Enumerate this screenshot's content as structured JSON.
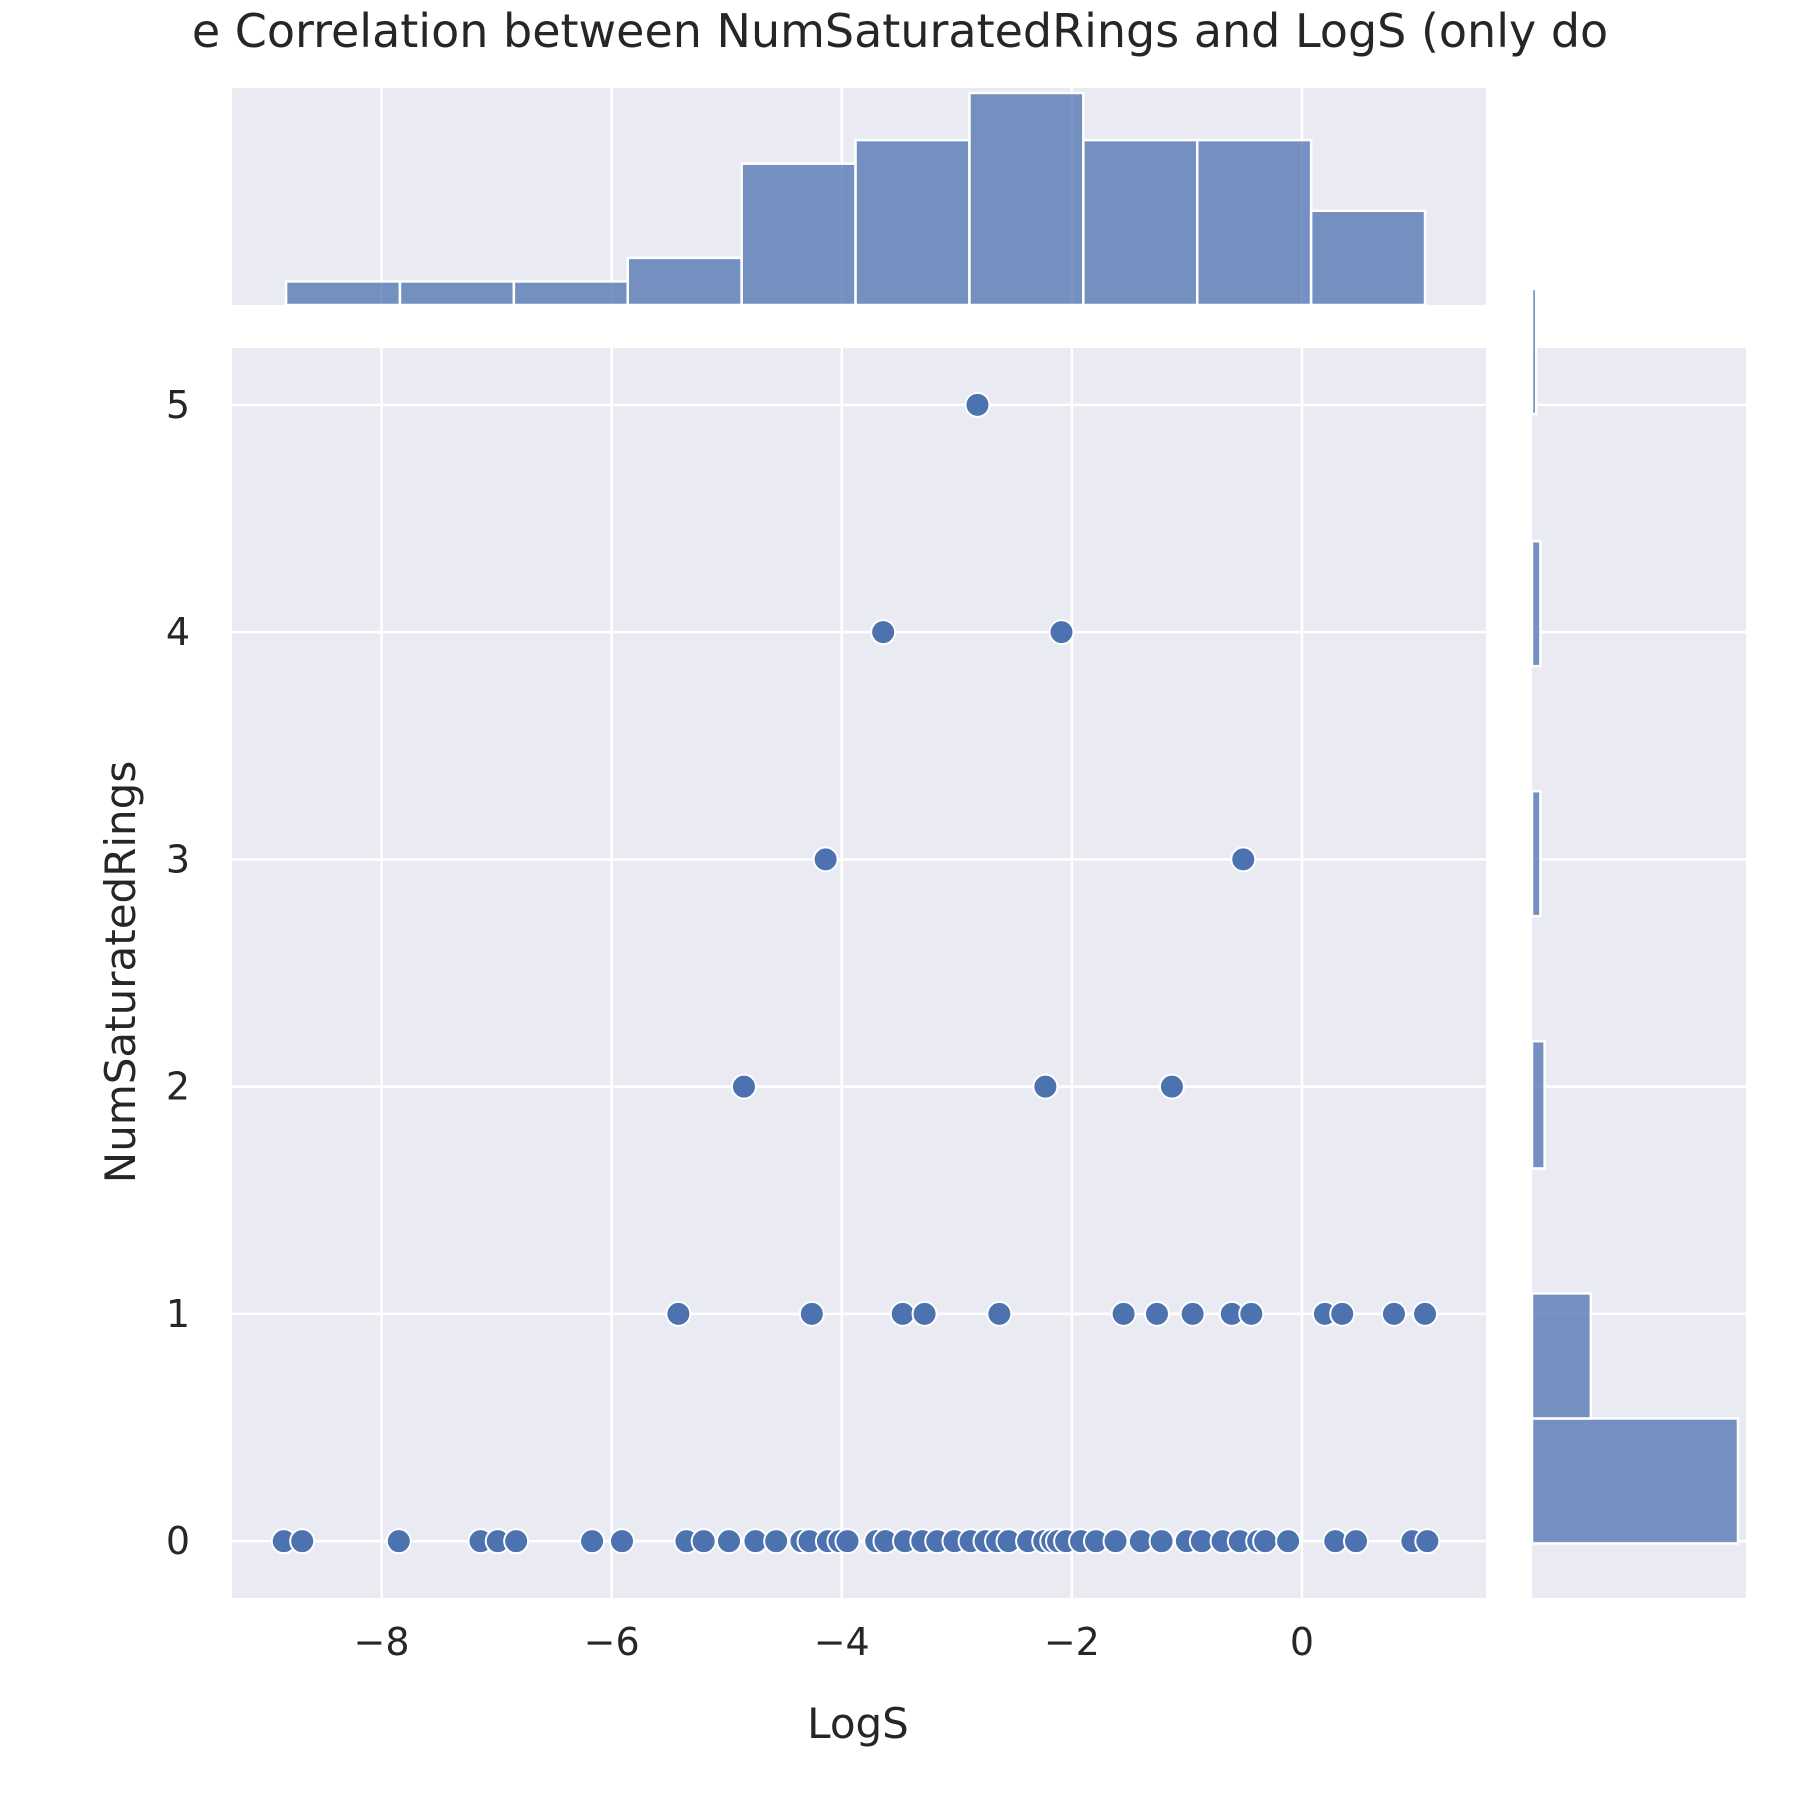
{
  "chart_data": {
    "type": "scatter",
    "title": "e Correlation between NumSaturatedRings and LogS (only do",
    "xlabel": "LogS",
    "ylabel": "NumSaturatedRings",
    "xlim": [
      -9.3,
      1.6
    ],
    "ylim": [
      -0.25,
      5.25
    ],
    "x_ticks": [
      -8,
      -6,
      -4,
      -2,
      0
    ],
    "x_tick_labels": [
      "−8",
      "−6",
      "−4",
      "−2",
      "0"
    ],
    "y_ticks": [
      0,
      1,
      2,
      3,
      4,
      5
    ],
    "y_tick_labels": [
      "0",
      "1",
      "2",
      "3",
      "4",
      "5"
    ],
    "grid": true,
    "colors": {
      "background": "#eaeaf2",
      "grid": "#ffffff",
      "marker": "#4c72b0",
      "hist": "#4c72b0"
    },
    "points": [
      {
        "x": -2.82,
        "y": 5
      },
      {
        "x": -3.64,
        "y": 4
      },
      {
        "x": -2.09,
        "y": 4
      },
      {
        "x": -4.14,
        "y": 3
      },
      {
        "x": -0.51,
        "y": 3
      },
      {
        "x": -4.85,
        "y": 2
      },
      {
        "x": -2.23,
        "y": 2
      },
      {
        "x": -1.13,
        "y": 2
      },
      {
        "x": -5.42,
        "y": 1
      },
      {
        "x": -4.26,
        "y": 1
      },
      {
        "x": -3.47,
        "y": 1
      },
      {
        "x": -3.28,
        "y": 1
      },
      {
        "x": -2.63,
        "y": 1
      },
      {
        "x": -1.55,
        "y": 1
      },
      {
        "x": -1.26,
        "y": 1
      },
      {
        "x": -0.95,
        "y": 1
      },
      {
        "x": -0.61,
        "y": 1
      },
      {
        "x": -0.44,
        "y": 1
      },
      {
        "x": 0.2,
        "y": 1
      },
      {
        "x": 0.35,
        "y": 1
      },
      {
        "x": 0.8,
        "y": 1
      },
      {
        "x": 1.07,
        "y": 1
      },
      {
        "x": -8.85,
        "y": 0
      },
      {
        "x": -8.69,
        "y": 0
      },
      {
        "x": -7.85,
        "y": 0
      },
      {
        "x": -7.14,
        "y": 0
      },
      {
        "x": -6.99,
        "y": 0
      },
      {
        "x": -6.83,
        "y": 0
      },
      {
        "x": -6.17,
        "y": 0
      },
      {
        "x": -5.91,
        "y": 0
      },
      {
        "x": -5.35,
        "y": 0
      },
      {
        "x": -5.2,
        "y": 0
      },
      {
        "x": -4.98,
        "y": 0
      },
      {
        "x": -4.75,
        "y": 0
      },
      {
        "x": -4.57,
        "y": 0
      },
      {
        "x": -4.35,
        "y": 0
      },
      {
        "x": -4.28,
        "y": 0
      },
      {
        "x": -4.12,
        "y": 0
      },
      {
        "x": -4.02,
        "y": 0
      },
      {
        "x": -3.95,
        "y": 0
      },
      {
        "x": -3.7,
        "y": 0
      },
      {
        "x": -3.62,
        "y": 0
      },
      {
        "x": -3.45,
        "y": 0
      },
      {
        "x": -3.3,
        "y": 0
      },
      {
        "x": -3.17,
        "y": 0
      },
      {
        "x": -3.02,
        "y": 0
      },
      {
        "x": -2.88,
        "y": 0
      },
      {
        "x": -2.75,
        "y": 0
      },
      {
        "x": -2.65,
        "y": 0
      },
      {
        "x": -2.55,
        "y": 0
      },
      {
        "x": -2.38,
        "y": 0
      },
      {
        "x": -2.24,
        "y": 0
      },
      {
        "x": -2.17,
        "y": 0
      },
      {
        "x": -2.12,
        "y": 0
      },
      {
        "x": -2.05,
        "y": 0
      },
      {
        "x": -1.92,
        "y": 0
      },
      {
        "x": -1.79,
        "y": 0
      },
      {
        "x": -1.62,
        "y": 0
      },
      {
        "x": -1.4,
        "y": 0
      },
      {
        "x": -1.22,
        "y": 0
      },
      {
        "x": -1.0,
        "y": 0
      },
      {
        "x": -0.87,
        "y": 0
      },
      {
        "x": -0.69,
        "y": 0
      },
      {
        "x": -0.54,
        "y": 0
      },
      {
        "x": -0.38,
        "y": 0
      },
      {
        "x": -0.32,
        "y": 0
      },
      {
        "x": -0.12,
        "y": 0
      },
      {
        "x": 0.29,
        "y": 0
      },
      {
        "x": 0.47,
        "y": 0
      },
      {
        "x": 0.96,
        "y": 0
      },
      {
        "x": 1.09,
        "y": 0
      }
    ],
    "marginal_x_hist": {
      "bin_edges": [
        -8.83,
        -7.84,
        -6.85,
        -5.86,
        -4.87,
        -3.88,
        -2.89,
        -1.9,
        -0.91,
        0.08,
        1.07
      ],
      "counts": [
        1,
        1,
        1,
        2,
        6,
        7,
        9,
        7,
        7,
        4
      ]
    },
    "marginal_y_hist": {
      "bin_edges": [
        -0.01,
        0.54,
        1.09,
        1.64,
        2.2,
        2.75,
        3.3,
        3.85,
        4.4,
        4.96,
        5.51
      ],
      "counts": [
        49,
        14,
        0,
        3,
        0,
        2,
        0,
        2,
        0,
        1
      ]
    }
  }
}
